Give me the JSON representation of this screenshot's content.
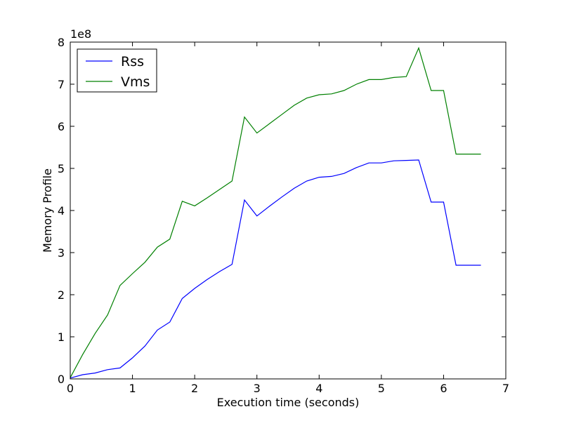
{
  "chart_data": {
    "type": "line",
    "title": "",
    "xlabel": "Execution time (seconds)",
    "ylabel": "Memory Profile",
    "y_multiplier": "1e8",
    "xlim": [
      0,
      7
    ],
    "ylim": [
      0,
      800000000
    ],
    "x_ticks": [
      0,
      1,
      2,
      3,
      4,
      5,
      6,
      7
    ],
    "y_ticks": [
      0,
      100000000,
      200000000,
      300000000,
      400000000,
      500000000,
      600000000,
      700000000,
      800000000
    ],
    "x_tick_labels": [
      "0",
      "1",
      "2",
      "3",
      "4",
      "5",
      "6",
      "7"
    ],
    "y_tick_labels": [
      "0",
      "1",
      "2",
      "3",
      "4",
      "5",
      "6",
      "7",
      "8"
    ],
    "grid": false,
    "legend_position": "top-left",
    "x": [
      0,
      0.2,
      0.4,
      0.6,
      0.8,
      1.0,
      1.2,
      1.4,
      1.6,
      1.8,
      2.0,
      2.2,
      2.4,
      2.6,
      2.8,
      3.0,
      3.2,
      3.4,
      3.6,
      3.8,
      4.0,
      4.2,
      4.4,
      4.6,
      4.8,
      5.0,
      5.2,
      5.4,
      5.6,
      5.8,
      6.0,
      6.2,
      6.4,
      6.6
    ],
    "series": [
      {
        "name": "Rss",
        "color": "#0000ff",
        "values": [
          2000000,
          10000000,
          14000000,
          22000000,
          26000000,
          50000000,
          78000000,
          116000000,
          135000000,
          191000000,
          215000000,
          236000000,
          255000000,
          272000000,
          425000000,
          387000000,
          410000000,
          432000000,
          453000000,
          470000000,
          479000000,
          481000000,
          488000000,
          502000000,
          513000000,
          513000000,
          518000000,
          519000000,
          520000000,
          420000000,
          420000000,
          270000000,
          270000000,
          270000000
        ]
      },
      {
        "name": "Vms",
        "color": "#008000",
        "values": [
          3000000,
          58000000,
          108000000,
          152000000,
          222000000,
          250000000,
          277000000,
          313000000,
          332000000,
          422000000,
          411000000,
          430000000,
          450000000,
          470000000,
          622000000,
          584000000,
          606000000,
          628000000,
          650000000,
          667000000,
          675000000,
          677000000,
          685000000,
          700000000,
          711000000,
          711000000,
          716000000,
          718000000,
          786000000,
          685000000,
          685000000,
          534000000,
          534000000,
          534000000
        ]
      }
    ]
  }
}
